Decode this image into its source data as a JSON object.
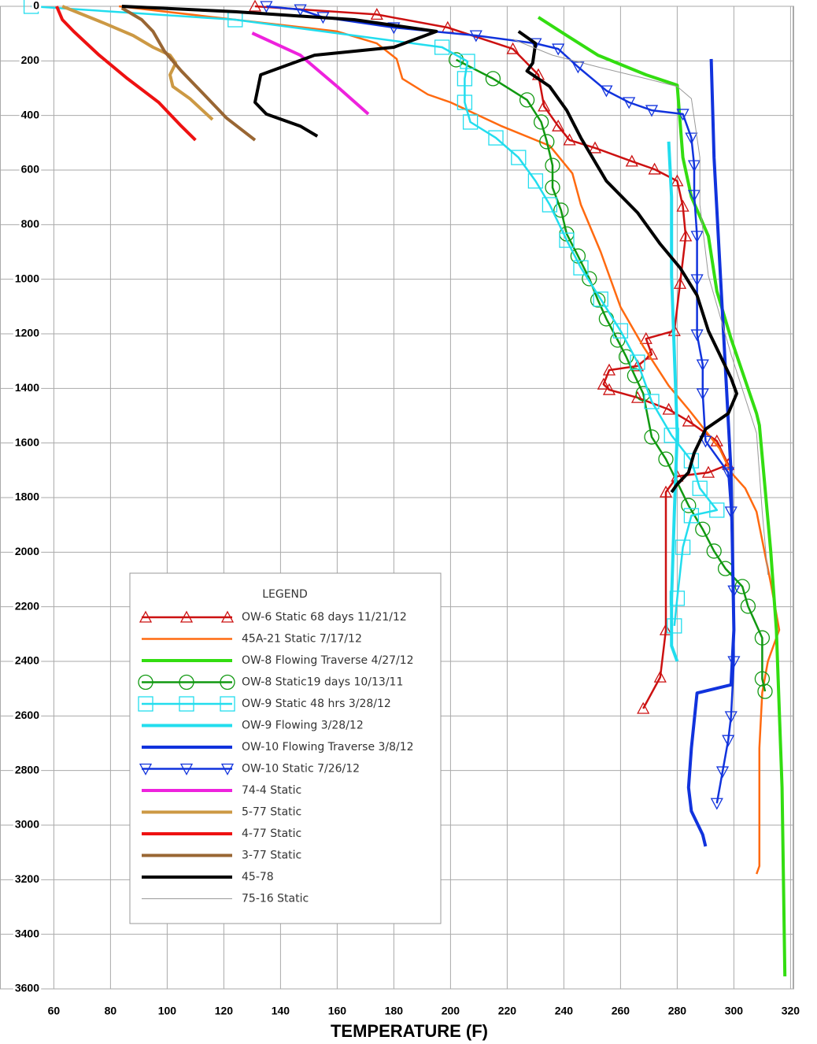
{
  "chart_data": {
    "type": "line",
    "x_label": "TEMPERATURE (F)",
    "legend_title": "LEGEND",
    "legend": "lower left",
    "grid": true,
    "y_reversed": true,
    "xlim": [
      41,
      321
    ],
    "ylim": [
      0,
      3600
    ],
    "xticks": [
      60,
      80,
      100,
      120,
      140,
      160,
      180,
      200,
      220,
      240,
      260,
      280,
      300,
      320
    ],
    "yticks": [
      0,
      200,
      400,
      600,
      800,
      1000,
      1200,
      1400,
      1600,
      1800,
      2000,
      2200,
      2400,
      2600,
      2800,
      3000,
      3200,
      3400,
      3600
    ],
    "series": [
      {
        "name": "OW-6 Static 68 days 11/21/12",
        "color": "#cc1111",
        "line": "medium",
        "marker": "triangle",
        "x": [
          131,
          174,
          199,
          222,
          231,
          233,
          238,
          242,
          251,
          264,
          272,
          280,
          282,
          283,
          281,
          279,
          269,
          271,
          266,
          256,
          254,
          256,
          266,
          277,
          284,
          294,
          298,
          291,
          280,
          276,
          276,
          274,
          268
        ],
        "values": [
          0,
          30,
          78,
          156,
          251,
          366,
          439,
          490,
          519,
          568,
          597,
          640,
          733,
          842,
          1016,
          1189,
          1218,
          1275,
          1318,
          1333,
          1385,
          1405,
          1434,
          1477,
          1520,
          1593,
          1679,
          1708,
          1722,
          1780,
          2285,
          2458,
          2573
        ]
      },
      {
        "name": "45A-21 Static 7/17/12",
        "color": "#ff6a10",
        "line": "medium",
        "marker": "none",
        "x": [
          83,
          160,
          174,
          181,
          183,
          192,
          200,
          218,
          235,
          243,
          246,
          253,
          260,
          264,
          268,
          277,
          284,
          295,
          299,
          304,
          308,
          313,
          316,
          312,
          310,
          309,
          309,
          308
        ],
        "values": [
          0,
          92,
          136,
          193,
          265,
          323,
          352,
          439,
          511,
          612,
          727,
          900,
          1102,
          1174,
          1246,
          1390,
          1477,
          1621,
          1708,
          1766,
          1852,
          2112,
          2285,
          2400,
          2515,
          2718,
          3150,
          3179
        ]
      },
      {
        "name": "OW-8 Flowing Traverse 4/27/12",
        "color": "#33dd11",
        "line": "thick",
        "marker": "none",
        "x": [
          231,
          241,
          252,
          269,
          280,
          282,
          285,
          291,
          294,
          299,
          308,
          309,
          313,
          315,
          317,
          318
        ],
        "values": [
          40,
          107,
          179,
          251,
          289,
          554,
          698,
          842,
          1044,
          1218,
          1492,
          1535,
          1996,
          2285,
          2862,
          3554
        ]
      },
      {
        "name": "OW-8 Static19 days 10/13/11",
        "color": "#119911",
        "line": "medium",
        "marker": "circle",
        "x": [
          202,
          215,
          227,
          232,
          234,
          236,
          236,
          239,
          241,
          245,
          249,
          252,
          255,
          259,
          262,
          265,
          268,
          271,
          276,
          284,
          289,
          293,
          297,
          303,
          305,
          310,
          310,
          311
        ],
        "values": [
          196,
          265,
          343,
          424,
          496,
          583,
          664,
          747,
          834,
          915,
          998,
          1076,
          1145,
          1223,
          1284,
          1353,
          1419,
          1578,
          1659,
          1829,
          1916,
          1996,
          2060,
          2126,
          2198,
          2314,
          2464,
          2510
        ]
      },
      {
        "name": "OW-9 Static 48 hrs 3/28/12",
        "color": "#22ddee",
        "line": "medium",
        "marker": "square",
        "x": [
          52,
          124,
          197,
          206,
          205,
          205,
          207,
          216,
          224,
          230,
          235,
          241,
          246,
          253,
          260,
          266,
          271,
          278,
          285,
          288,
          294,
          285,
          282,
          280,
          279
        ],
        "values": [
          0,
          49,
          150,
          202,
          265,
          352,
          424,
          482,
          554,
          640,
          727,
          857,
          958,
          1073,
          1189,
          1304,
          1448,
          1572,
          1665,
          1766,
          1846,
          1866,
          1982,
          2169,
          2270
        ]
      },
      {
        "name": "OW-9 Flowing 3/28/12",
        "color": "#22ddee",
        "line": "thick",
        "marker": "none",
        "x": [
          277,
          278,
          278,
          279,
          280,
          279,
          278,
          278,
          280
        ],
        "values": [
          496,
          698,
          987,
          1275,
          1564,
          1852,
          2170,
          2343,
          2400
        ]
      },
      {
        "name": "OW-10 Flowing Traverse 3/8/12",
        "color": "#1133dd",
        "line": "thick",
        "marker": "none",
        "x": [
          292,
          293,
          296,
          299,
          300,
          299,
          287,
          285,
          284,
          285,
          289,
          290
        ],
        "values": [
          193,
          554,
          1131,
          1708,
          2285,
          2486,
          2516,
          2718,
          2862,
          2949,
          3035,
          3078
        ]
      },
      {
        "name": "OW-10 Static 7/26/12",
        "color": "#1133dd",
        "line": "medium",
        "marker": "triangle-down",
        "x": [
          135,
          147,
          155,
          180,
          209,
          230,
          238,
          245,
          255,
          263,
          271,
          282,
          285,
          286,
          286,
          287,
          287,
          287,
          289,
          289,
          290,
          298,
          299,
          300,
          300,
          299,
          298,
          296,
          294
        ],
        "values": [
          0,
          12,
          40,
          78,
          107,
          136,
          156,
          222,
          309,
          352,
          381,
          395,
          482,
          583,
          692,
          842,
          1001,
          1203,
          1313,
          1419,
          1593,
          1708,
          1852,
          2141,
          2400,
          2602,
          2689,
          2804,
          2920
        ]
      },
      {
        "name": "74-4 Static",
        "color": "#ee22dd",
        "line": "thick",
        "marker": "none",
        "x": [
          130,
          147,
          160,
          171
        ],
        "values": [
          98,
          179,
          294,
          395
        ]
      },
      {
        "name": "5-77 Static",
        "color": "#cc9944",
        "line": "thick",
        "marker": "none",
        "x": [
          63,
          78,
          88,
          95,
          101,
          103,
          101,
          102,
          108,
          116
        ],
        "values": [
          0,
          63,
          107,
          150,
          179,
          208,
          251,
          294,
          338,
          415
        ]
      },
      {
        "name": "4-77 Static",
        "color": "#ee1111",
        "line": "thick",
        "marker": "none",
        "x": [
          61,
          63,
          67,
          76,
          86,
          97,
          105,
          110
        ],
        "values": [
          0,
          49,
          92,
          179,
          265,
          352,
          439,
          490
        ]
      },
      {
        "name": "3-77 Static",
        "color": "#996633",
        "line": "thick",
        "marker": "none",
        "x": [
          84,
          91,
          95,
          99,
          105,
          113,
          121,
          131
        ],
        "values": [
          6,
          49,
          92,
          164,
          237,
          323,
          410,
          490
        ]
      },
      {
        "name": "45-78",
        "color": "#000000",
        "line": "thick",
        "marker": "none",
        "x": [
          84,
          124,
          166,
          195,
          180,
          152,
          133,
          131,
          135,
          147,
          153,
          null,
          224,
          230,
          229,
          227,
          235,
          241,
          246,
          255,
          266,
          274,
          281,
          287,
          291,
          299,
          301,
          298,
          290,
          286,
          284,
          280,
          278
        ],
        "values": [
          0,
          20,
          49,
          92,
          150,
          179,
          251,
          352,
          395,
          439,
          476,
          null,
          92,
          136,
          208,
          237,
          294,
          381,
          482,
          640,
          756,
          871,
          958,
          1059,
          1189,
          1362,
          1419,
          1492,
          1549,
          1636,
          1708,
          1751,
          1780
        ]
      },
      {
        "name": "75-16 Static",
        "color": "#999999",
        "line": "thin",
        "marker": "none",
        "x": [
          222,
          236,
          252,
          269,
          280,
          285,
          288,
          288,
          291,
          299,
          308,
          310,
          312
        ],
        "values": [
          121,
          179,
          222,
          265,
          294,
          338,
          554,
          727,
          987,
          1275,
          1564,
          1852,
          2083
        ]
      }
    ]
  }
}
